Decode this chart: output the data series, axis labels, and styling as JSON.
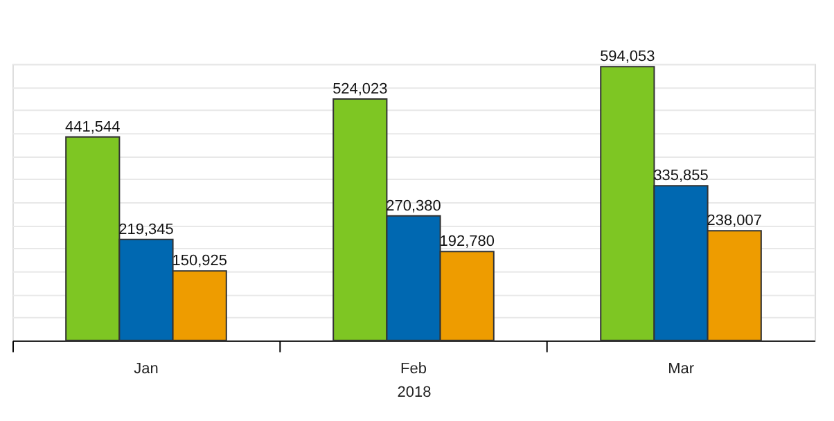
{
  "chart_data": {
    "type": "bar",
    "xlabel": "2018",
    "categories": [
      "Jan",
      "Feb",
      "Mar"
    ],
    "series": [
      {
        "color": "#7ec623",
        "values": [
          441544,
          524023,
          594053
        ],
        "value_labels": [
          "441,544",
          "524,023",
          "594,053"
        ]
      },
      {
        "color": "#0068b1",
        "values": [
          219345,
          270380,
          335855
        ],
        "value_labels": [
          "219,345",
          "270,380",
          "335,855"
        ]
      },
      {
        "color": "#ee9c00",
        "values": [
          150925,
          192780,
          238007
        ],
        "value_labels": [
          "150,925",
          "192,780",
          "238,007"
        ]
      }
    ],
    "grid": "y",
    "legend": false,
    "tick_labels": "x"
  }
}
